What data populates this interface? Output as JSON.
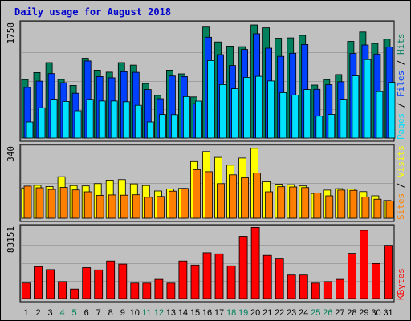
{
  "chart_data": {
    "type": "bar",
    "title": "Daily usage for August 2018",
    "days": [
      "1",
      "2",
      "3",
      "4",
      "5",
      "6",
      "7",
      "8",
      "9",
      "10",
      "11",
      "12",
      "13",
      "14",
      "15",
      "16",
      "17",
      "18",
      "19",
      "20",
      "21",
      "22",
      "23",
      "24",
      "25",
      "26",
      "27",
      "28",
      "29",
      "30",
      "31"
    ],
    "weekend_days": [
      "4",
      "5",
      "11",
      "12",
      "18",
      "19",
      "25",
      "26"
    ],
    "colors": {
      "hits": "#00805c",
      "files": "#0040ff",
      "pages": "#00e0ff",
      "visits": "#ffff00",
      "sites": "#ff8000",
      "kbytes": "#ff0000",
      "title": "#0000cc",
      "weekday": "#000000",
      "weekend": "#00805c"
    },
    "panels": [
      {
        "id": "top",
        "max_label": "1758",
        "ymax": 1758,
        "label_parts": [
          {
            "text": "Pages",
            "color": "#00e0ff"
          },
          {
            "text": " / ",
            "color": "#000000"
          },
          {
            "text": "Files",
            "color": "#0040ff"
          },
          {
            "text": " / ",
            "color": "#000000"
          },
          {
            "text": "Hits",
            "color": "#00805c"
          }
        ],
        "series": [
          {
            "key": "hits",
            "values": [
              895,
              1003,
              1156,
              897,
              806,
              1223,
              1040,
              1009,
              1155,
              1118,
              835,
              653,
              1040,
              983,
              630,
              1700,
              1473,
              1409,
              1400,
              1733,
              1689,
              1531,
              1536,
              1574,
              811,
              895,
              972,
              1481,
              1625,
              1450,
              1516
            ]
          },
          {
            "key": "files",
            "values": [
              776,
              872,
              987,
              848,
              686,
              1181,
              942,
              923,
              1017,
              1007,
              743,
              602,
              950,
              942,
              527,
              1545,
              1279,
              1111,
              1357,
              1599,
              1377,
              1251,
              1299,
              1434,
              746,
              818,
              862,
              1297,
              1426,
              1287,
              1396
            ]
          },
          {
            "key": "pages",
            "values": [
              246,
              464,
              595,
              560,
              418,
              592,
              567,
              567,
              556,
              501,
              246,
              362,
              359,
              634,
              566,
              1187,
              819,
              755,
              930,
              946,
              874,
              696,
              658,
              742,
              336,
              363,
              595,
              951,
              1202,
              710,
              855
            ]
          }
        ]
      },
      {
        "id": "middle",
        "max_label": "340",
        "ymax": 340,
        "label_parts": [
          {
            "text": "Sites",
            "color": "#ff8000"
          },
          {
            "text": " / ",
            "color": "#000000"
          },
          {
            "text": "Visits",
            "color": "#ffff00"
          }
        ],
        "series": [
          {
            "key": "visits",
            "values": [
              144,
              157,
              151,
              198,
              156,
              154,
              165,
              182,
              184,
              164,
              156,
              130,
              140,
              142,
              270,
              318,
              290,
              253,
              287,
              333,
              174,
              162,
              160,
              154,
              118,
              134,
              141,
              140,
              127,
              107,
              85
            ]
          },
          {
            "key": "sites",
            "values": [
              153,
              145,
              137,
              147,
              135,
              126,
              109,
              111,
              110,
              112,
              100,
              104,
              129,
              142,
              232,
              222,
              165,
              207,
              193,
              216,
              126,
              150,
              149,
              146,
              120,
              107,
              134,
              133,
              101,
              91,
              82
            ]
          }
        ]
      },
      {
        "id": "bottom",
        "max_label": "83151",
        "ymax": 83151,
        "label_parts": [
          {
            "text": "KBytes",
            "color": "#ff0000"
          }
        ],
        "series": [
          {
            "key": "kbytes",
            "values": [
              18006,
              37100,
              33690,
              19690,
              11022,
              35960,
              33353,
              43680,
              40040,
              17905,
              17906,
              22330,
              17906,
              43690,
              39000,
              53352,
              52010,
              38000,
              72400,
              82800,
              50300,
              46200,
              27400,
              27400,
              17907,
              19700,
              22300,
              52660,
              79400,
              40760,
              61960
            ]
          }
        ]
      }
    ]
  }
}
